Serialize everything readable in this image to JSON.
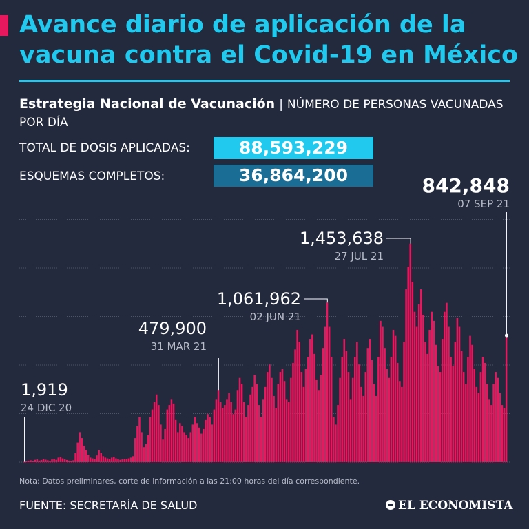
{
  "header": {
    "title": "Avance diario de aplicación de la vacuna contra el Covid-19 en México",
    "accent_color": "#e8185e",
    "title_color": "#22c9ee"
  },
  "subtitle": {
    "strong": "Estrategia Nacional de Vacunación",
    "separator": "|",
    "rest": "NÚMERO DE PERSONAS VACUNADAS POR DÍA"
  },
  "stats": {
    "total_label": "TOTAL DE DOSIS APLICADAS:",
    "total_value": "88,593,229",
    "complete_label": "ESQUEMAS COMPLETOS:",
    "complete_value": "36,864,200"
  },
  "chart_data": {
    "type": "bar",
    "bar_color": "#e8185e",
    "x_start": "24 DIC 20",
    "x_end": "07 SEP 21",
    "ylim": [
      0,
      1700000
    ],
    "grid": "horizontal dotted",
    "annotations": [
      {
        "value": "1,919",
        "date": "24 DIC 20"
      },
      {
        "value": "479,900",
        "date": "31 MAR 21"
      },
      {
        "value": "1,061,962",
        "date": "02 JUN 21"
      },
      {
        "value": "1,453,638",
        "date": "27 JUL 21"
      },
      {
        "value": "842,848",
        "date": "07 SEP 21"
      }
    ],
    "values": [
      1919,
      6000,
      9000,
      12000,
      8000,
      15000,
      18000,
      10000,
      14000,
      20000,
      16000,
      12000,
      9000,
      18000,
      22000,
      15000,
      30000,
      35000,
      25000,
      18000,
      14000,
      10000,
      8000,
      12000,
      60000,
      130000,
      200000,
      160000,
      110000,
      80000,
      50000,
      30000,
      25000,
      20000,
      45000,
      80000,
      60000,
      40000,
      30000,
      25000,
      20000,
      30000,
      35000,
      25000,
      20000,
      15000,
      18000,
      20000,
      22000,
      25000,
      30000,
      40000,
      160000,
      240000,
      300000,
      200000,
      100000,
      120000,
      180000,
      300000,
      350000,
      400000,
      450000,
      380000,
      250000,
      150000,
      220000,
      350000,
      380000,
      420000,
      390000,
      280000,
      200000,
      260000,
      240000,
      200000,
      180000,
      160000,
      200000,
      250000,
      300000,
      260000,
      230000,
      190000,
      220000,
      280000,
      320000,
      300000,
      250000,
      350000,
      420000,
      479900,
      400000,
      360000,
      380000,
      420000,
      460000,
      400000,
      320000,
      350000,
      480000,
      560000,
      520000,
      400000,
      300000,
      380000,
      450000,
      500000,
      580000,
      520000,
      380000,
      300000,
      420000,
      500000,
      600000,
      650000,
      560000,
      440000,
      360000,
      520000,
      600000,
      620000,
      540000,
      420000,
      400000,
      560000,
      660000,
      750000,
      880000,
      800000,
      600000,
      500000,
      620000,
      700000,
      820000,
      850000,
      720000,
      550000,
      480000,
      580000,
      760000,
      900000,
      1061962,
      900000,
      700000,
      300000,
      250000,
      380000,
      560000,
      700000,
      820000,
      740000,
      600000,
      420000,
      560000,
      700000,
      800000,
      650000,
      500000,
      440000,
      600000,
      760000,
      820000,
      680000,
      520000,
      440000,
      700000,
      940000,
      900000,
      760000,
      620000,
      560000,
      700000,
      880000,
      840000,
      660000,
      540000,
      500000,
      800000,
      1150000,
      1300000,
      1453638,
      1200000,
      1000000,
      900000,
      1050000,
      1150000,
      980000,
      800000,
      720000,
      880000,
      1000000,
      940000,
      780000,
      640000,
      600000,
      820000,
      1000000,
      1060000,
      900000,
      700000,
      640000,
      800000,
      960000,
      900000,
      740000,
      600000,
      520000,
      700000,
      840000,
      780000,
      620000,
      500000,
      460000,
      600000,
      700000,
      660000,
      520000,
      420000,
      380000,
      520000,
      600000,
      560000,
      460000,
      380000,
      360000,
      842848
    ]
  },
  "footer": {
    "note": "Nota: Datos preliminares, corte de información a las 21:00 horas del día correspondiente.",
    "source": "FUENTE: SECRETARÍA DE SALUD",
    "brand": "EL ECONOMISTA"
  }
}
